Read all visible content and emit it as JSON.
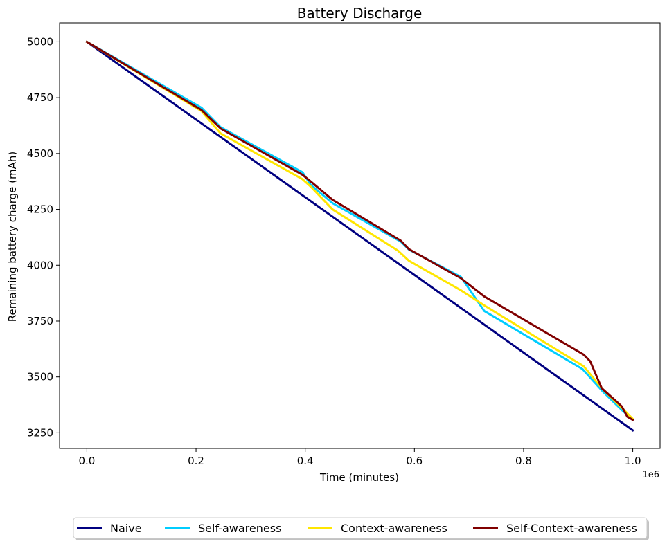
{
  "chart_data": {
    "type": "line",
    "title": "Battery Discharge",
    "xlabel": "Time (minutes)",
    "ylabel": "Remaining battery charge (mAh)",
    "x_offset_text": "1e6",
    "xlim": [
      -0.05,
      1.05
    ],
    "ylim": [
      3180,
      5085
    ],
    "x_ticks": [
      0.0,
      0.2,
      0.4,
      0.6,
      0.8,
      1.0
    ],
    "x_tick_labels": [
      "0.0",
      "0.2",
      "0.4",
      "0.6",
      "0.8",
      "1.0"
    ],
    "y_ticks": [
      3250,
      3500,
      3750,
      4000,
      4250,
      4500,
      4750,
      5000
    ],
    "y_tick_labels": [
      "3250",
      "3500",
      "3750",
      "4000",
      "4250",
      "4500",
      "4750",
      "5000"
    ],
    "grid": false,
    "legend_position": "bottom-center",
    "series": [
      {
        "name": "Naive",
        "color": "#000080",
        "x": [
          0.0,
          1.0
        ],
        "y": [
          5000,
          3261
        ]
      },
      {
        "name": "Self-awareness",
        "color": "#00cdff",
        "x": [
          0.0,
          0.21,
          0.245,
          0.395,
          0.41,
          0.45,
          0.575,
          0.59,
          0.685,
          0.728,
          0.908,
          0.945,
          0.98,
          1.0
        ],
        "y": [
          5000,
          4705,
          4618,
          4416,
          4360,
          4278,
          4106,
          4070,
          3948,
          3795,
          3535,
          3435,
          3352,
          3308
        ]
      },
      {
        "name": "Context-awareness",
        "color": "#ffe600",
        "x": [
          0.0,
          0.21,
          0.245,
          0.395,
          0.41,
          0.45,
          0.57,
          0.59,
          0.685,
          0.728,
          0.91,
          0.945,
          0.98,
          1.0
        ],
        "y": [
          5000,
          4690,
          4590,
          4385,
          4352,
          4250,
          4065,
          4020,
          3888,
          3820,
          3548,
          3445,
          3362,
          3312
        ]
      },
      {
        "name": "Self-Context-awareness",
        "color": "#800000",
        "x": [
          0.0,
          0.21,
          0.245,
          0.395,
          0.41,
          0.45,
          0.575,
          0.59,
          0.685,
          0.728,
          0.91,
          0.922,
          0.943,
          0.98,
          0.99,
          1.0
        ],
        "y": [
          5000,
          4695,
          4612,
          4405,
          4375,
          4293,
          4110,
          4072,
          3942,
          3860,
          3600,
          3570,
          3450,
          3368,
          3322,
          3308
        ]
      }
    ]
  }
}
